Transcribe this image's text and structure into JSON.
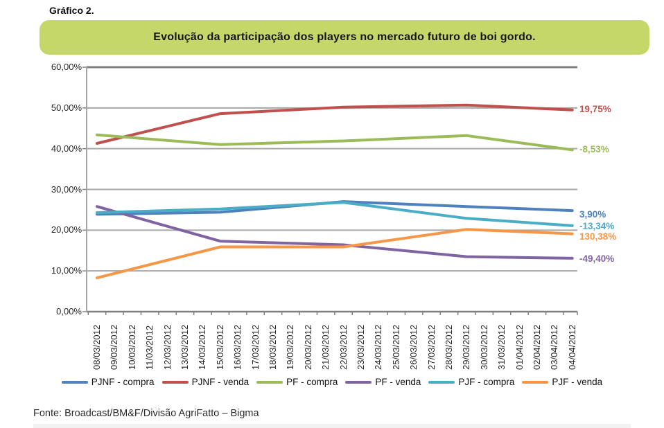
{
  "page": {
    "heading": "Gráfico 2.",
    "banner_title": "Evolução da participação dos players no mercado futuro de boi gordo.",
    "footer": "Fonte: Broadcast/BM&F/Divisão AgriFatto – Bigma"
  },
  "colors": {
    "banner_bg": "#C6D76A",
    "gridline": "#A6A6A6",
    "axis": "#808080",
    "axis_text": "#262626"
  },
  "chart_data": {
    "type": "line",
    "title": "Evolução da participação dos players no mercado futuro de boi gordo.",
    "xlabel": "",
    "ylabel": "",
    "ylim": [
      0,
      60
    ],
    "y_tick_step": 10,
    "y_tick_labels_top_to_bottom": [
      "60,00%",
      "50,00%",
      "40,00%",
      "30,00%",
      "20,00%",
      "10,00%",
      "0,00%"
    ],
    "grid": true,
    "legend_position": "bottom",
    "categories": [
      "08/03/2012",
      "09/03/2012",
      "10/03/2012",
      "11/03/2012",
      "12/03/2012",
      "13/03/2012",
      "14/03/2012",
      "15/03/2012",
      "16/03/2012",
      "17/03/2012",
      "18/03/2012",
      "19/03/2012",
      "20/03/2012",
      "21/03/2012",
      "22/03/2012",
      "23/03/2012",
      "24/03/2012",
      "25/03/2012",
      "26/03/2012",
      "27/03/2012",
      "28/03/2012",
      "29/03/2012",
      "30/03/2012",
      "31/03/2012",
      "01/04/2012",
      "02/04/2012",
      "03/04/2012",
      "04/04/2012"
    ],
    "series": [
      {
        "name": "PJNF - compra",
        "color": "#4F81BD",
        "end_label": "3,90%",
        "points": [
          {
            "date": "08/03/2012",
            "value": 23.9
          },
          {
            "date": "15/03/2012",
            "value": 24.4
          },
          {
            "date": "22/03/2012",
            "value": 27.0
          },
          {
            "date": "29/03/2012",
            "value": 25.8
          },
          {
            "date": "04/04/2012",
            "value": 24.8
          }
        ]
      },
      {
        "name": "PJNF - venda",
        "color": "#C0504D",
        "end_label": "19,75%",
        "points": [
          {
            "date": "08/03/2012",
            "value": 41.3
          },
          {
            "date": "15/03/2012",
            "value": 48.6
          },
          {
            "date": "22/03/2012",
            "value": 50.2
          },
          {
            "date": "29/03/2012",
            "value": 50.7
          },
          {
            "date": "04/04/2012",
            "value": 49.5
          }
        ]
      },
      {
        "name": "PF - compra",
        "color": "#9BBB59",
        "end_label": "-8,53%",
        "points": [
          {
            "date": "08/03/2012",
            "value": 43.4
          },
          {
            "date": "15/03/2012",
            "value": 41.0
          },
          {
            "date": "22/03/2012",
            "value": 41.9
          },
          {
            "date": "29/03/2012",
            "value": 43.2
          },
          {
            "date": "04/04/2012",
            "value": 39.7
          }
        ]
      },
      {
        "name": "PF - venda",
        "color": "#8064A2",
        "end_label": "-49,40%",
        "points": [
          {
            "date": "08/03/2012",
            "value": 25.8
          },
          {
            "date": "15/03/2012",
            "value": 17.3
          },
          {
            "date": "22/03/2012",
            "value": 16.4
          },
          {
            "date": "29/03/2012",
            "value": 13.5
          },
          {
            "date": "04/04/2012",
            "value": 13.1
          }
        ]
      },
      {
        "name": "PJF - compra",
        "color": "#4BACC6",
        "end_label": "-13,34%",
        "points": [
          {
            "date": "08/03/2012",
            "value": 24.3
          },
          {
            "date": "15/03/2012",
            "value": 25.2
          },
          {
            "date": "22/03/2012",
            "value": 26.8
          },
          {
            "date": "29/03/2012",
            "value": 22.9
          },
          {
            "date": "04/04/2012",
            "value": 21.1
          }
        ]
      },
      {
        "name": "PJF - venda",
        "color": "#F79646",
        "end_label": "130,38%",
        "points": [
          {
            "date": "08/03/2012",
            "value": 8.3
          },
          {
            "date": "15/03/2012",
            "value": 15.9
          },
          {
            "date": "22/03/2012",
            "value": 15.9
          },
          {
            "date": "29/03/2012",
            "value": 20.2
          },
          {
            "date": "04/04/2012",
            "value": 19.1
          }
        ]
      }
    ],
    "legend_entries": [
      "PJNF - compra",
      "PJNF - venda",
      "PF - compra",
      "PF - venda",
      "PJF - compra",
      "PJF - venda"
    ]
  }
}
